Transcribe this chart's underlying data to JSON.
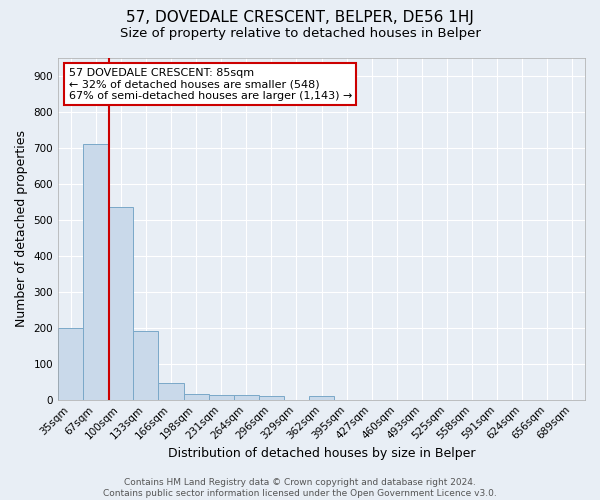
{
  "title": "57, DOVEDALE CRESCENT, BELPER, DE56 1HJ",
  "subtitle": "Size of property relative to detached houses in Belper",
  "xlabel": "Distribution of detached houses by size in Belper",
  "ylabel": "Number of detached properties",
  "bin_labels": [
    "35sqm",
    "67sqm",
    "100sqm",
    "133sqm",
    "166sqm",
    "198sqm",
    "231sqm",
    "264sqm",
    "296sqm",
    "329sqm",
    "362sqm",
    "395sqm",
    "427sqm",
    "460sqm",
    "493sqm",
    "525sqm",
    "558sqm",
    "591sqm",
    "624sqm",
    "656sqm",
    "689sqm"
  ],
  "bar_heights": [
    200,
    710,
    535,
    190,
    47,
    17,
    13,
    12,
    10,
    0,
    10,
    0,
    0,
    0,
    0,
    0,
    0,
    0,
    0,
    0,
    0
  ],
  "bar_color": "#c9d9ea",
  "bar_edge_color": "#7aa8c8",
  "red_line_x": 1.55,
  "annotation_line1": "57 DOVEDALE CRESCENT: 85sqm",
  "annotation_line2": "← 32% of detached houses are smaller (548)",
  "annotation_line3": "67% of semi-detached houses are larger (1,143) →",
  "annotation_box_color": "#ffffff",
  "annotation_box_edge": "#cc0000",
  "ylim": [
    0,
    950
  ],
  "yticks": [
    0,
    100,
    200,
    300,
    400,
    500,
    600,
    700,
    800,
    900
  ],
  "footer_text": "Contains HM Land Registry data © Crown copyright and database right 2024.\nContains public sector information licensed under the Open Government Licence v3.0.",
  "background_color": "#e8eef5",
  "plot_background": "#e8eef5",
  "grid_color": "#ffffff",
  "title_fontsize": 11,
  "subtitle_fontsize": 9.5,
  "axis_label_fontsize": 9,
  "tick_fontsize": 7.5,
  "annotation_fontsize": 8,
  "footer_fontsize": 6.5
}
